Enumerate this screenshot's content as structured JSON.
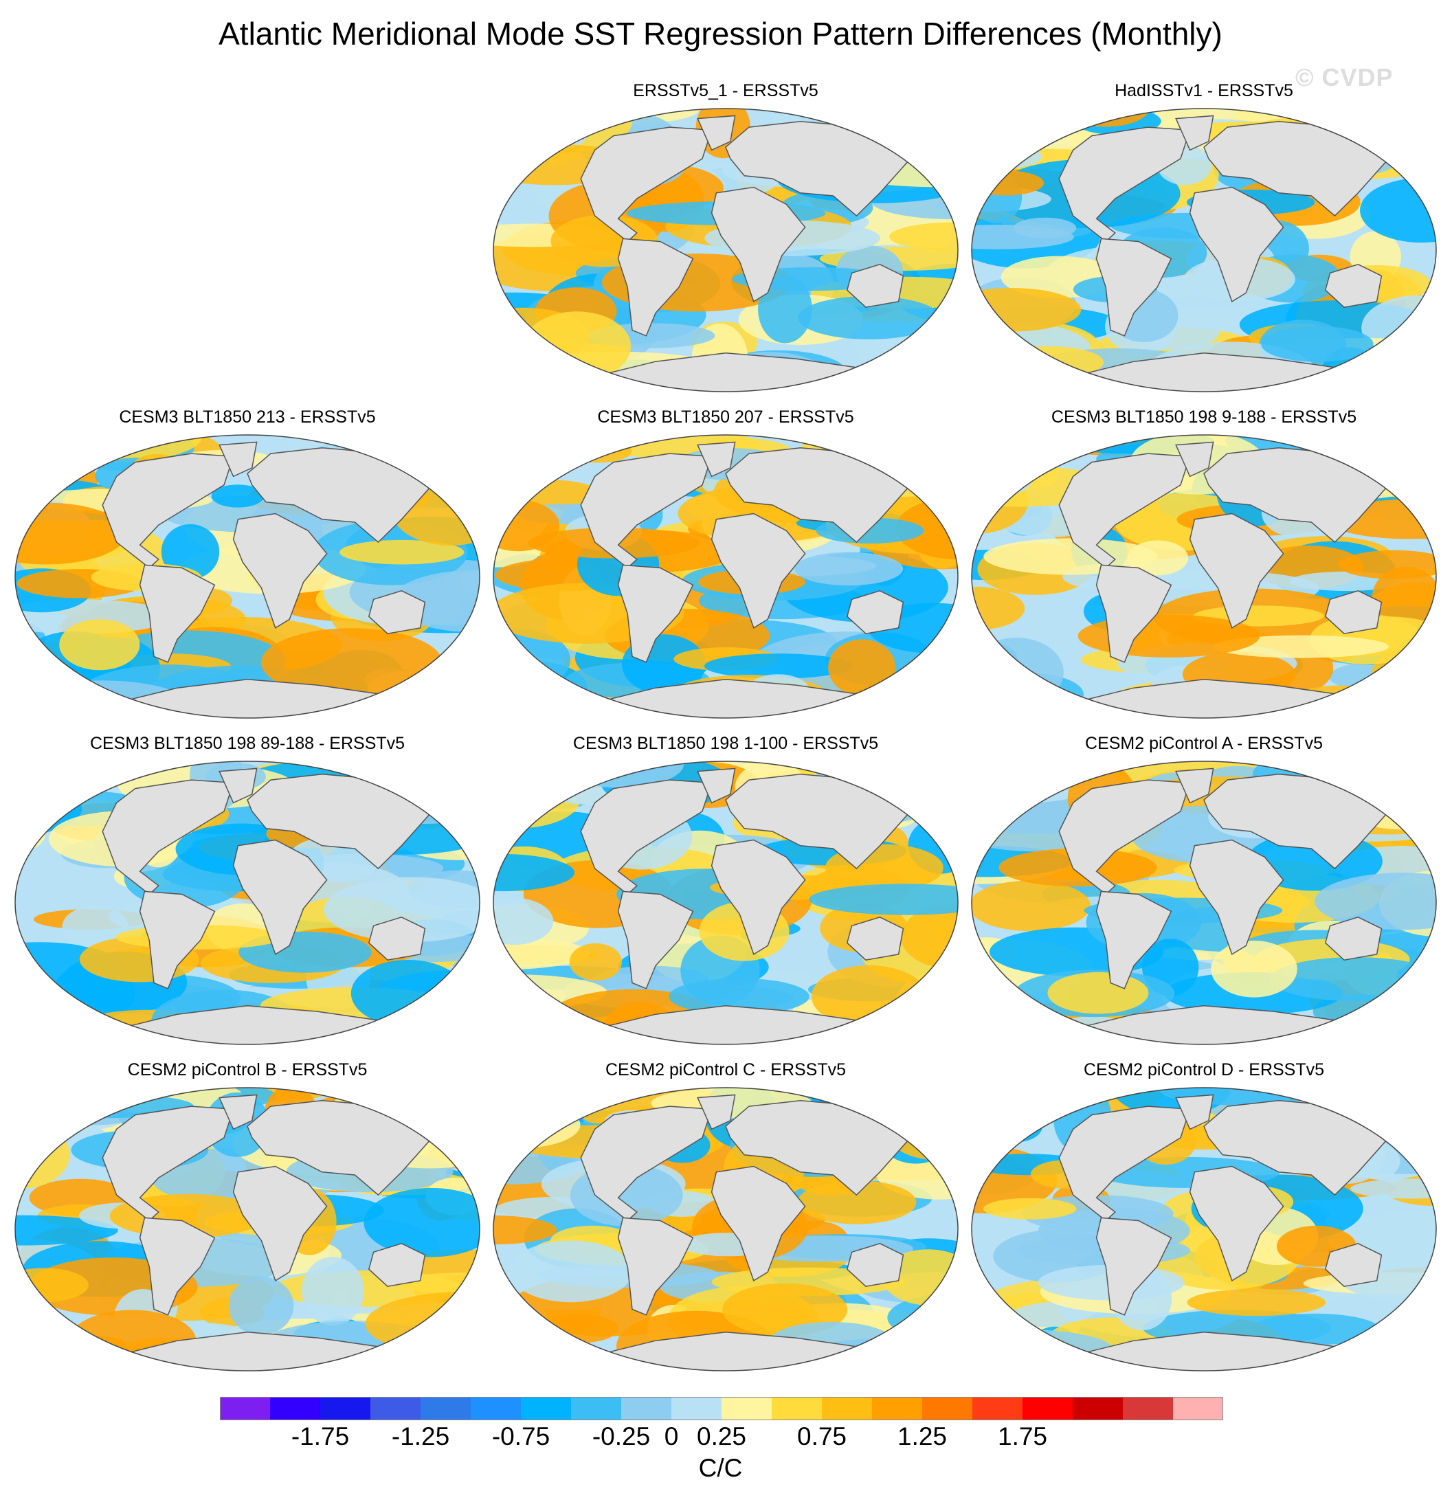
{
  "figure": {
    "title": "Atlantic Meridional Mode SST Regression Pattern Differences (Monthly)",
    "watermark": "© CVDP"
  },
  "chart_data": {
    "type": "heatmap",
    "projection": "Robinson (global map panels)",
    "variable": "SST regression pattern difference",
    "panels": [
      {
        "title": "ERSSTv5_1 - ERSSTv5",
        "position": "row1-col2"
      },
      {
        "title": "HadISSTv1 - ERSSTv5",
        "position": "row1-col3"
      },
      {
        "title": "CESM3 BLT1850 213 - ERSSTv5",
        "position": "row2-col1"
      },
      {
        "title": "CESM3 BLT1850 207 - ERSSTv5",
        "position": "row2-col2"
      },
      {
        "title": "CESM3 BLT1850 198 9-188 - ERSSTv5",
        "position": "row2-col3"
      },
      {
        "title": "CESM3 BLT1850 198 89-188 - ERSSTv5",
        "position": "row3-col1"
      },
      {
        "title": "CESM3 BLT1850 198 1-100 - ERSSTv5",
        "position": "row3-col2"
      },
      {
        "title": "CESM2 piControl A - ERSSTv5",
        "position": "row3-col3"
      },
      {
        "title": "CESM2 piControl B - ERSSTv5",
        "position": "row4-col1"
      },
      {
        "title": "CESM2 piControl C - ERSSTv5",
        "position": "row4-col2"
      },
      {
        "title": "CESM2 piControl D - ERSSTv5",
        "position": "row4-col3"
      }
    ],
    "colorbar": {
      "levels": [
        -2,
        -1.75,
        -1.5,
        -1.25,
        -1,
        -0.75,
        -0.5,
        -0.25,
        0,
        0.25,
        0.5,
        0.75,
        1,
        1.25,
        1.5,
        1.75,
        2
      ],
      "colors": [
        "#7d1ff0",
        "#3300ff",
        "#1717f0",
        "#3d5be6",
        "#2e7ae8",
        "#1e90ff",
        "#00b2ff",
        "#3cbef5",
        "#8ccdf0",
        "#b9e1f5",
        "#fff5a0",
        "#ffdc3c",
        "#ffbe14",
        "#ff9f00",
        "#ff7800",
        "#ff3c14",
        "#ff0000",
        "#cc0000",
        "#d93838",
        "#ffb0b0"
      ],
      "tick_labels": [
        "-1.75",
        "-1.25",
        "-0.75",
        "-0.25",
        "0",
        "0.25",
        "0.75",
        "1.25",
        "1.75"
      ],
      "tick_values": [
        -1.75,
        -1.25,
        -0.75,
        -0.25,
        0,
        0.25,
        0.75,
        1.25,
        1.75
      ],
      "units": "C/C"
    }
  }
}
